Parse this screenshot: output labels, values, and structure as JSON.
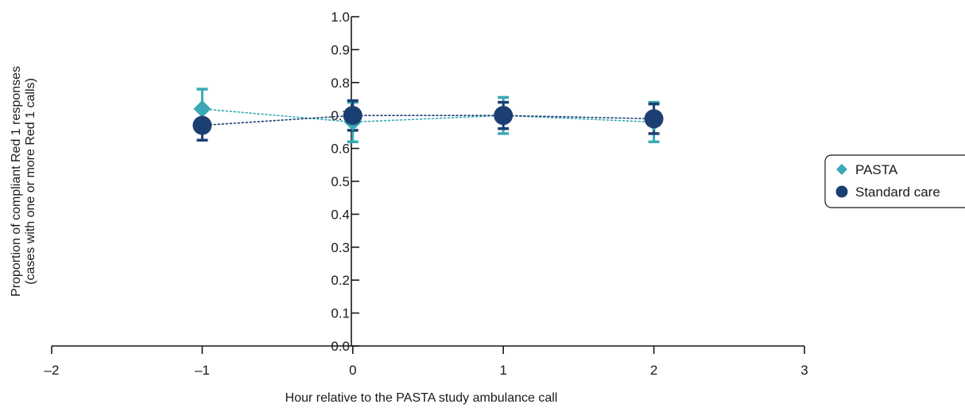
{
  "chart_data": {
    "type": "scatter",
    "title": "",
    "xlabel": "Hour relative to the PASTA study ambulance call",
    "ylabel_lines": [
      "Proportion of compliant Red 1 responses",
      "(cases with one or more Red 1 calls)"
    ],
    "xlim": [
      -2,
      3
    ],
    "ylim": [
      0,
      1
    ],
    "x_ticks": [
      -2,
      -1,
      0,
      1,
      2,
      3
    ],
    "x_tick_labels": [
      "–2",
      "–1",
      "0",
      "1",
      "2",
      "3"
    ],
    "y_ticks": [
      0,
      0.1,
      0.2,
      0.3,
      0.4,
      0.5,
      0.6,
      0.7,
      0.8,
      0.9,
      1.0
    ],
    "y_tick_labels": [
      "0.0",
      "0.1",
      "0.2",
      "0.3",
      "0.4",
      "0.5",
      "0.6",
      "0.7",
      "0.8",
      "0.9",
      "1.0"
    ],
    "grid": false,
    "legend_position": "right",
    "series": [
      {
        "name": "PASTA",
        "marker": "diamond",
        "color": "#3aa9b5",
        "line_style": "dotted",
        "points": [
          {
            "x": -1,
            "y": 0.72,
            "lo": 0.66,
            "hi": 0.78
          },
          {
            "x": 0,
            "y": 0.68,
            "lo": 0.62,
            "hi": 0.74
          },
          {
            "x": 1,
            "y": 0.7,
            "lo": 0.645,
            "hi": 0.755
          },
          {
            "x": 2,
            "y": 0.68,
            "lo": 0.62,
            "hi": 0.74
          }
        ]
      },
      {
        "name": "Standard care",
        "marker": "circle",
        "color": "#1c3f73",
        "line_style": "dotted",
        "points": [
          {
            "x": -1,
            "y": 0.67,
            "lo": 0.625,
            "hi": 0.715
          },
          {
            "x": 0,
            "y": 0.7,
            "lo": 0.655,
            "hi": 0.745
          },
          {
            "x": 1,
            "y": 0.7,
            "lo": 0.66,
            "hi": 0.74
          },
          {
            "x": 2,
            "y": 0.69,
            "lo": 0.645,
            "hi": 0.735
          }
        ]
      }
    ]
  }
}
